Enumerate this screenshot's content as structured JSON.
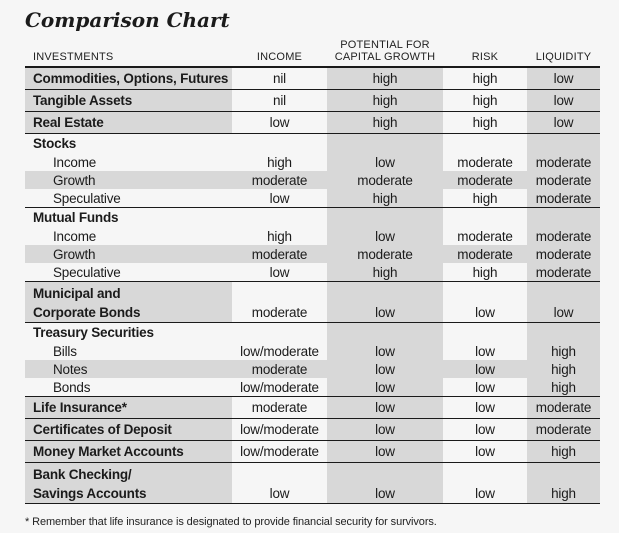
{
  "title": "Comparison Chart",
  "table": {
    "header": {
      "investments": "INVESTMENTS",
      "income": "INCOME",
      "potential_line1": "POTENTIAL FOR",
      "potential_line2": "CAPITAL GROWTH",
      "risk": "RISK",
      "liquidity": "LIQUIDITY"
    },
    "rows": [
      {
        "type": "item",
        "label": "Commodities, Options, Futures",
        "values": [
          "nil",
          "high",
          "high",
          "low"
        ],
        "rule_after": true
      },
      {
        "type": "item",
        "label": "Tangible Assets",
        "values": [
          "nil",
          "high",
          "high",
          "low"
        ],
        "rule_after": true
      },
      {
        "type": "item",
        "label": "Real Estate",
        "values": [
          "low",
          "high",
          "high",
          "low"
        ],
        "rule_after": true
      },
      {
        "type": "group",
        "label": "Stocks",
        "values": [
          "",
          "",
          "",
          ""
        ]
      },
      {
        "type": "sub",
        "label": "Income",
        "values": [
          "high",
          "low",
          "moderate",
          "moderate"
        ]
      },
      {
        "type": "sub",
        "label": "Growth",
        "values": [
          "moderate",
          "moderate",
          "moderate",
          "moderate"
        ],
        "shade": "full"
      },
      {
        "type": "sub",
        "label": "Speculative",
        "values": [
          "low",
          "high",
          "high",
          "moderate"
        ],
        "rule_after": true
      },
      {
        "type": "group",
        "label": "Mutual Funds",
        "values": [
          "",
          "",
          "",
          ""
        ]
      },
      {
        "type": "sub",
        "label": "Income",
        "values": [
          "high",
          "low",
          "moderate",
          "moderate"
        ]
      },
      {
        "type": "sub",
        "label": "Growth",
        "values": [
          "moderate",
          "moderate",
          "moderate",
          "moderate"
        ],
        "shade": "full"
      },
      {
        "type": "sub",
        "label": "Speculative",
        "values": [
          "low",
          "high",
          "high",
          "moderate"
        ],
        "rule_after": true
      },
      {
        "type": "item2",
        "label_lines": [
          "Municipal and",
          "Corporate Bonds"
        ],
        "values": [
          "moderate",
          "low",
          "low",
          "low"
        ],
        "rule_after": true
      },
      {
        "type": "group",
        "label": "Treasury Securities",
        "values": [
          "",
          "",
          "",
          ""
        ]
      },
      {
        "type": "sub",
        "label": "Bills",
        "values": [
          "low/moderate",
          "low",
          "low",
          "high"
        ]
      },
      {
        "type": "sub",
        "label": "Notes",
        "values": [
          "moderate",
          "low",
          "low",
          "high"
        ],
        "shade": "full"
      },
      {
        "type": "sub",
        "label": "Bonds",
        "values": [
          "low/moderate",
          "low",
          "low",
          "high"
        ],
        "rule_after": true
      },
      {
        "type": "item",
        "label": "Life Insurance*",
        "values": [
          "moderate",
          "low",
          "low",
          "moderate"
        ],
        "rule_after": true
      },
      {
        "type": "item",
        "label": "Certificates of Deposit",
        "values": [
          "low/moderate",
          "low",
          "low",
          "moderate"
        ],
        "rule_after": true
      },
      {
        "type": "item",
        "label": "Money Market Accounts",
        "values": [
          "low/moderate",
          "low",
          "low",
          "high"
        ],
        "rule_after": true
      },
      {
        "type": "item2",
        "label_lines": [
          "Bank Checking/",
          "Savings Accounts"
        ],
        "values": [
          "low",
          "low",
          "low",
          "high"
        ],
        "rule_after": true
      }
    ]
  },
  "footnote": "* Remember that life insurance is designated to provide financial security for survivors.",
  "colors": {
    "shade": "#d8d8d8",
    "rule": "#1a1a1a",
    "background": "#f6f6f6",
    "text": "#1b1b1b"
  }
}
